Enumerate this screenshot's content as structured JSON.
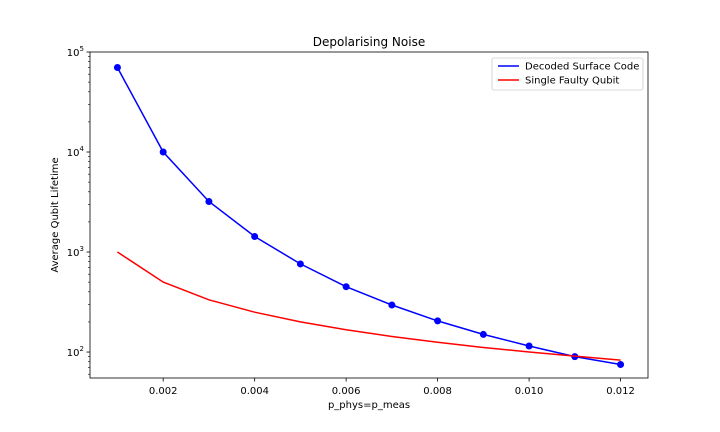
{
  "chart_data": {
    "type": "line",
    "title": "Depolarising Noise",
    "xlabel": "p_phys=p_meas",
    "ylabel": "Average Qubit Lifetime",
    "yscale": "log",
    "xlim": [
      0.0004,
      0.0126
    ],
    "ylim": [
      55,
      100000
    ],
    "x_ticks": [
      0.002,
      0.004,
      0.006,
      0.008,
      0.01,
      0.012
    ],
    "x_tick_labels": [
      "0.002",
      "0.004",
      "0.006",
      "0.008",
      "0.010",
      "0.012"
    ],
    "y_ticks": [
      100,
      1000,
      10000,
      100000
    ],
    "y_tick_labels": [
      {
        "base": "10",
        "exp": "2"
      },
      {
        "base": "10",
        "exp": "3"
      },
      {
        "base": "10",
        "exp": "4"
      },
      {
        "base": "10",
        "exp": "5"
      }
    ],
    "legend_position": "upper right",
    "grid": false,
    "series": [
      {
        "name": "Decoded Surface Code",
        "color": "#0000ff",
        "markers": true,
        "x": [
          0.001,
          0.002,
          0.003,
          0.004,
          0.005,
          0.006,
          0.007,
          0.008,
          0.009,
          0.01,
          0.011,
          0.012
        ],
        "y": [
          70000,
          10000,
          3200,
          1430,
          760,
          450,
          295,
          205,
          150,
          115,
          90,
          75
        ]
      },
      {
        "name": "Single Faulty Qubit",
        "color": "#ff0000",
        "markers": false,
        "x": [
          0.001,
          0.002,
          0.003,
          0.004,
          0.005,
          0.006,
          0.007,
          0.008,
          0.009,
          0.01,
          0.011,
          0.012
        ],
        "y": [
          1000,
          500,
          333,
          250,
          200,
          167,
          143,
          125,
          111,
          100,
          91,
          83
        ]
      }
    ]
  }
}
